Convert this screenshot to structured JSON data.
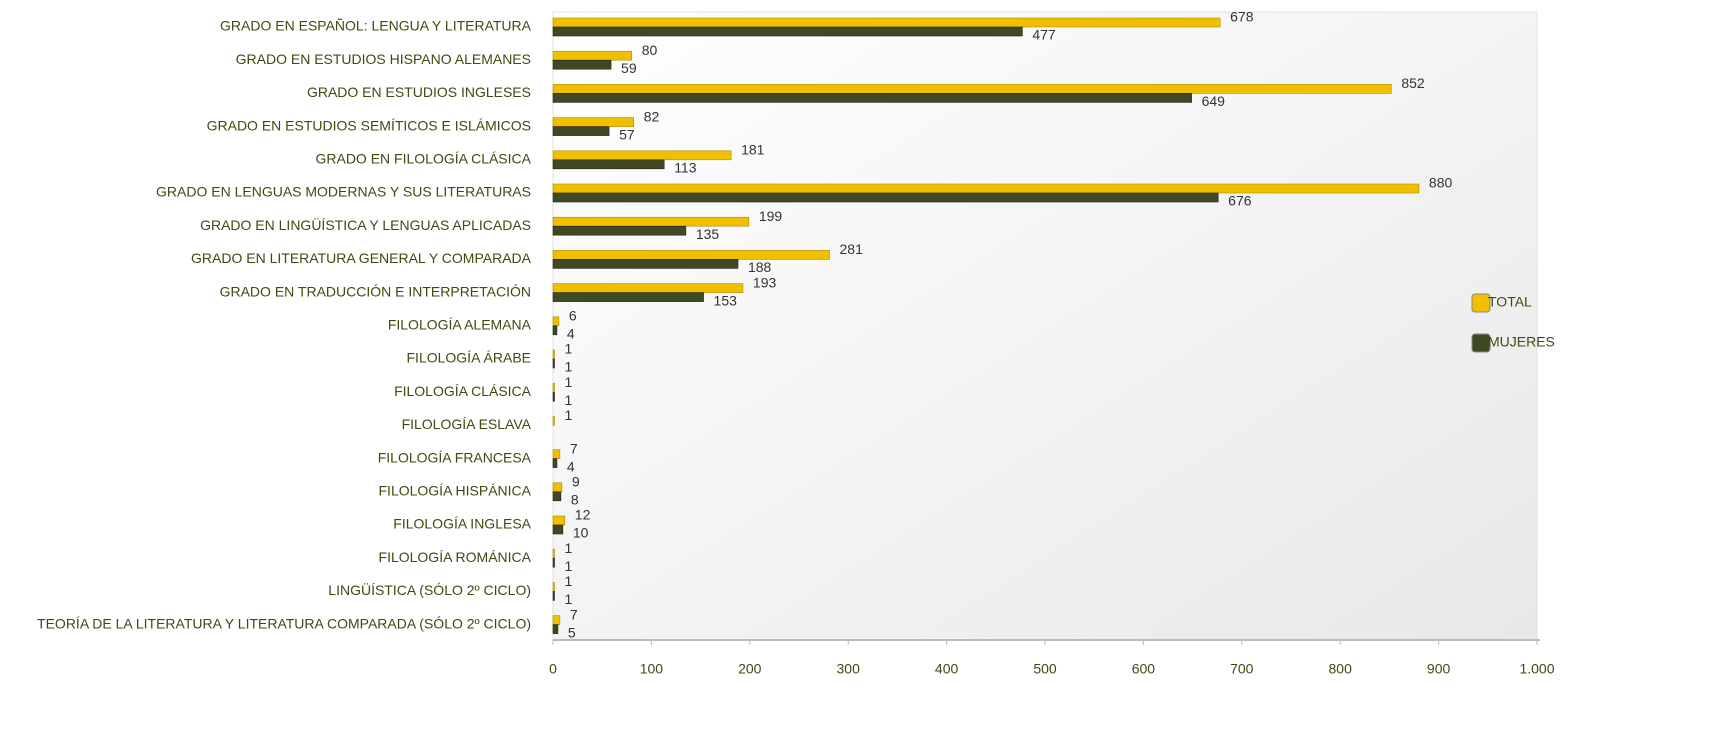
{
  "chart_data": {
    "type": "bar",
    "orientation": "horizontal",
    "categories": [
      "GRADO EN ESPAÑOL: LENGUA Y LITERATURA",
      "GRADO EN ESTUDIOS HISPANO ALEMANES",
      "GRADO EN ESTUDIOS INGLESES",
      "GRADO EN ESTUDIOS SEMÍTICOS E ISLÁMICOS",
      "GRADO EN FILOLOGÍA CLÁSICA",
      "GRADO EN LENGUAS MODERNAS Y SUS LITERATURAS",
      "GRADO EN LINGÜÍSTICA Y LENGUAS APLICADAS",
      "GRADO EN LITERATURA GENERAL Y COMPARADA",
      "GRADO EN TRADUCCIÓN E INTERPRETACIÓN",
      "FILOLOGÍA ALEMANA",
      "FILOLOGÍA ÁRABE",
      "FILOLOGÍA CLÁSICA",
      "FILOLOGÍA ESLAVA",
      "FILOLOGÍA FRANCESA",
      "FILOLOGÍA HISPÁNICA",
      "FILOLOGÍA INGLESA",
      "FILOLOGÍA ROMÁNICA",
      "LINGÜÍSTICA (SÓLO 2º CICLO)",
      "TEORÍA DE LA LITERATURA Y LITERATURA COMPARADA (SÓLO 2º CICLO)"
    ],
    "series": [
      {
        "name": "TOTAL",
        "color": "#f0c000",
        "values": [
          678,
          80,
          852,
          82,
          181,
          880,
          199,
          281,
          193,
          6,
          1,
          1,
          1,
          7,
          9,
          12,
          1,
          1,
          7
        ]
      },
      {
        "name": "MUJERES",
        "color": "#3f4a22",
        "values": [
          477,
          59,
          649,
          57,
          113,
          676,
          135,
          188,
          153,
          4,
          1,
          1,
          null,
          4,
          8,
          10,
          1,
          1,
          5
        ]
      }
    ],
    "xlim": [
      0,
      1000
    ],
    "xticks": [
      0,
      100,
      200,
      300,
      400,
      500,
      600,
      700,
      800,
      900,
      {
        "value": 1000,
        "label": "1.000"
      }
    ],
    "legend": "right"
  }
}
